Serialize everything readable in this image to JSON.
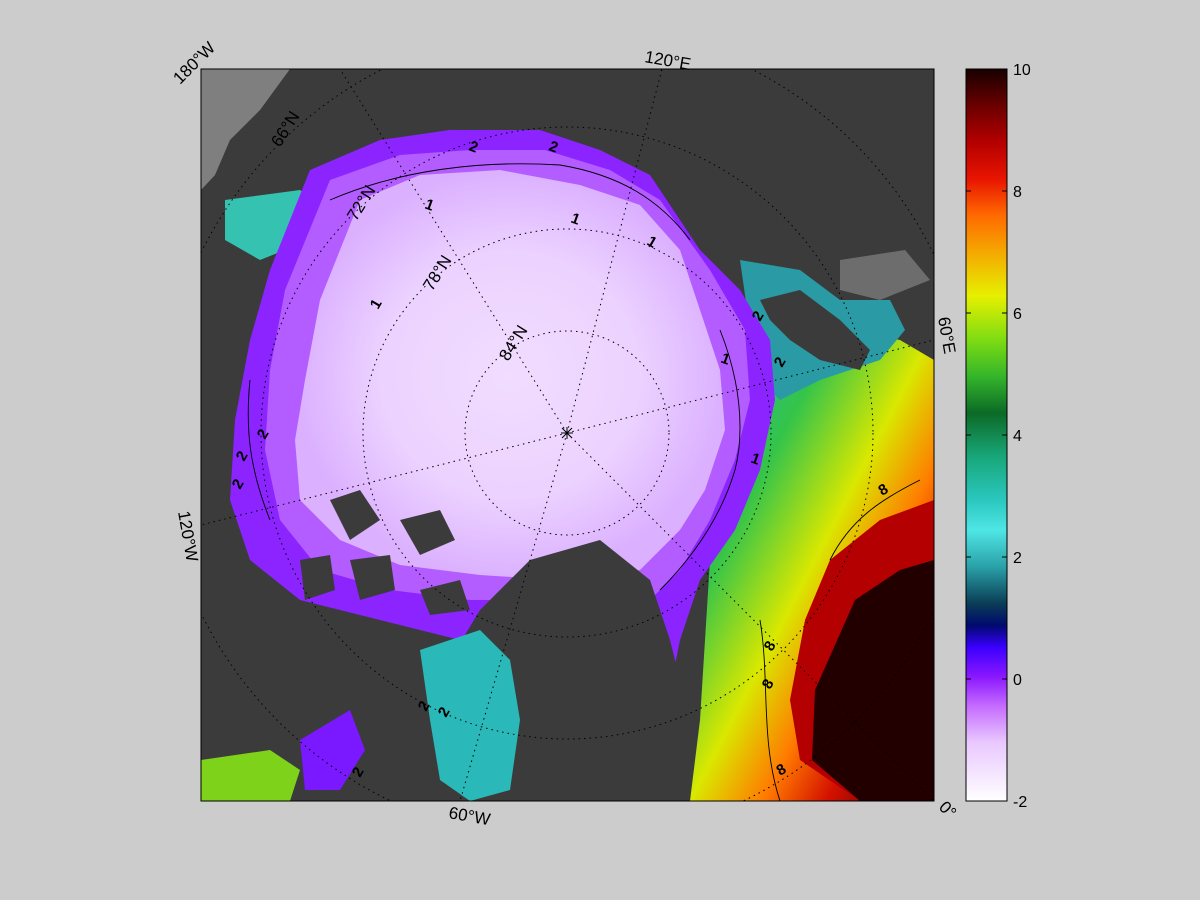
{
  "map": {
    "type": "polar_stereographic_filled_contour",
    "projection": "north-polar-stereographic",
    "latitude_labels": [
      "66°N",
      "72°N",
      "78°N",
      "84°N"
    ],
    "longitude_labels": [
      "180°W",
      "120°E",
      "60°E",
      "0°",
      "60°W",
      "120°W"
    ],
    "contour_labels": [
      "2",
      "2",
      "1",
      "1",
      "1",
      "1",
      "1",
      "1",
      "2",
      "2",
      "2",
      "2",
      "2",
      "8",
      "8",
      "8",
      "8",
      "2",
      "2",
      "2"
    ],
    "land_color": "#3b3b3b",
    "missing_color": "#7f7f7f",
    "background_color": "#cccccc"
  },
  "colorbar": {
    "min": -2,
    "max": 10,
    "tick_labels": [
      "10",
      "8",
      "6",
      "4",
      "2",
      "0",
      "-2"
    ],
    "colors": [
      "#ffffff",
      "#e9c8ff",
      "#c46bff",
      "#8a17ff",
      "#3a00ff",
      "#000a6e",
      "#0a3d55",
      "#2aa1a8",
      "#4fe6e6",
      "#2bc8c0",
      "#18a77a",
      "#0c6a26",
      "#34b52a",
      "#7edc12",
      "#e6f000",
      "#f2b400",
      "#ff6a00",
      "#e81400",
      "#b40000",
      "#6a0000",
      "#180000"
    ]
  }
}
